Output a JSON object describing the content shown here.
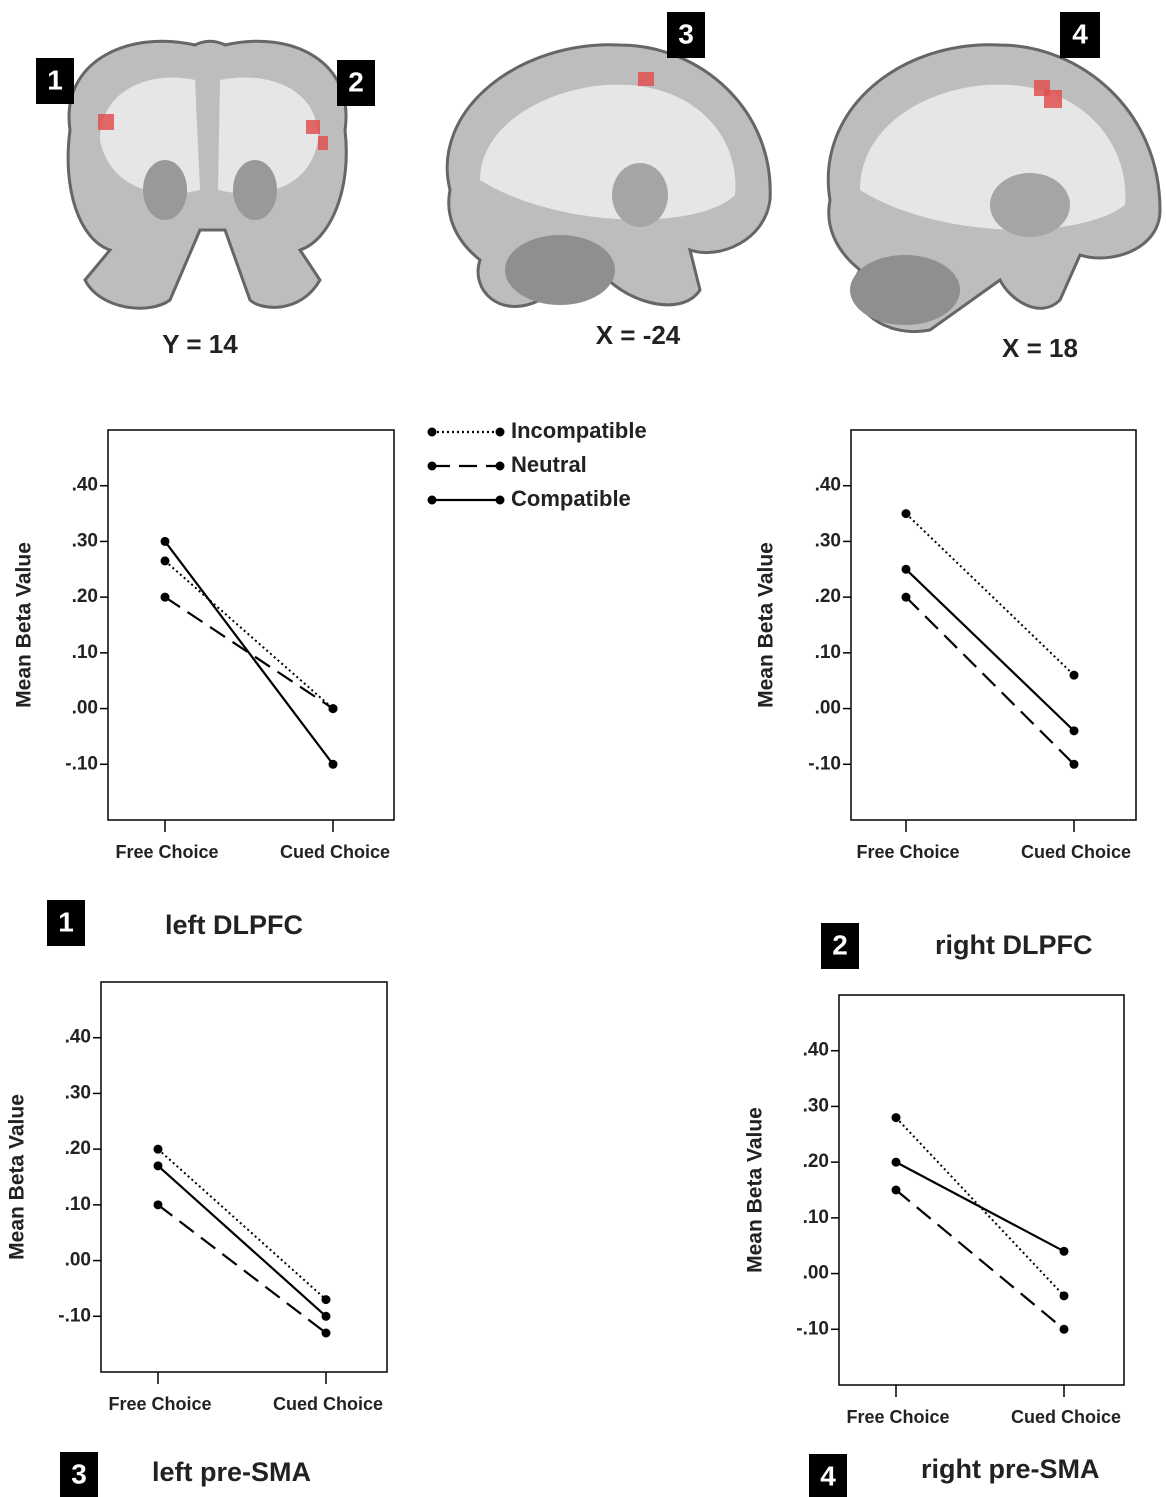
{
  "brain_panels": [
    {
      "labels": [
        "1",
        "2"
      ],
      "coordinate": "Y = 14"
    },
    {
      "labels": [
        "3"
      ],
      "coordinate": "X = -24"
    },
    {
      "labels": [
        "4"
      ],
      "coordinate": "X = 18"
    }
  ],
  "chart_data": [
    {
      "type": "line",
      "badge": "1",
      "title": "left DLPFC",
      "y_label": "Mean Beta Value",
      "categories": [
        "Free Choice",
        "Cued Choice"
      ],
      "ylim": [
        -0.2,
        0.5
      ],
      "yticks": [
        {
          "value": 0.4,
          "label": ".40"
        },
        {
          "value": 0.3,
          "label": ".30"
        },
        {
          "value": 0.2,
          "label": ".20"
        },
        {
          "value": 0.1,
          "label": ".10"
        },
        {
          "value": 0,
          "label": ".00"
        },
        {
          "value": -0.1,
          "label": "-.10"
        }
      ],
      "series": [
        {
          "name": "Incompatible",
          "style": "dotted",
          "color": "#000000",
          "values": [
            0.265,
            0.0
          ]
        },
        {
          "name": "Neutral",
          "style": "dashed",
          "color": "#000000",
          "values": [
            0.2,
            0.0
          ]
        },
        {
          "name": "Compatible",
          "style": "solid",
          "color": "#000000",
          "values": [
            0.3,
            -0.1
          ]
        }
      ]
    },
    {
      "type": "line",
      "badge": "2",
      "title": "right DLPFC",
      "y_label": "Mean Beta Value",
      "categories": [
        "Free Choice",
        "Cued Choice"
      ],
      "ylim": [
        -0.2,
        0.5
      ],
      "yticks": [
        {
          "value": 0.4,
          "label": ".40"
        },
        {
          "value": 0.3,
          "label": ".30"
        },
        {
          "value": 0.2,
          "label": ".20"
        },
        {
          "value": 0.1,
          "label": ".10"
        },
        {
          "value": 0,
          "label": ".00"
        },
        {
          "value": -0.1,
          "label": "-.10"
        }
      ],
      "series": [
        {
          "name": "Incompatible",
          "style": "dotted",
          "color": "#000000",
          "values": [
            0.35,
            0.06
          ]
        },
        {
          "name": "Neutral",
          "style": "dashed",
          "color": "#000000",
          "values": [
            0.2,
            -0.1
          ]
        },
        {
          "name": "Compatible",
          "style": "solid",
          "color": "#000000",
          "values": [
            0.25,
            -0.04
          ]
        }
      ]
    },
    {
      "type": "line",
      "badge": "3",
      "title": "left pre-SMA",
      "y_label": "Mean Beta Value",
      "categories": [
        "Free Choice",
        "Cued Choice"
      ],
      "ylim": [
        -0.2,
        0.5
      ],
      "yticks": [
        {
          "value": 0.4,
          "label": ".40"
        },
        {
          "value": 0.3,
          "label": ".30"
        },
        {
          "value": 0.2,
          "label": ".20"
        },
        {
          "value": 0.1,
          "label": ".10"
        },
        {
          "value": 0,
          "label": ".00"
        },
        {
          "value": -0.1,
          "label": "-.10"
        }
      ],
      "series": [
        {
          "name": "Incompatible",
          "style": "dotted",
          "color": "#000000",
          "values": [
            0.2,
            -0.07
          ]
        },
        {
          "name": "Neutral",
          "style": "dashed",
          "color": "#000000",
          "values": [
            0.1,
            -0.13
          ]
        },
        {
          "name": "Compatible",
          "style": "solid",
          "color": "#000000",
          "values": [
            0.17,
            -0.1
          ]
        }
      ]
    },
    {
      "type": "line",
      "badge": "4",
      "title": "right pre-SMA",
      "y_label": "Mean Beta Value",
      "categories": [
        "Free Choice",
        "Cued Choice"
      ],
      "ylim": [
        -0.2,
        0.5
      ],
      "yticks": [
        {
          "value": 0.4,
          "label": ".40"
        },
        {
          "value": 0.3,
          "label": ".30"
        },
        {
          "value": 0.2,
          "label": ".20"
        },
        {
          "value": 0.1,
          "label": ".10"
        },
        {
          "value": 0,
          "label": ".00"
        },
        {
          "value": -0.1,
          "label": "-.10"
        }
      ],
      "series": [
        {
          "name": "Incompatible",
          "style": "dotted",
          "color": "#000000",
          "values": [
            0.28,
            -0.04
          ]
        },
        {
          "name": "Neutral",
          "style": "dashed",
          "color": "#000000",
          "values": [
            0.15,
            -0.1
          ]
        },
        {
          "name": "Compatible",
          "style": "solid",
          "color": "#000000",
          "values": [
            0.2,
            0.04
          ]
        }
      ]
    }
  ]
}
